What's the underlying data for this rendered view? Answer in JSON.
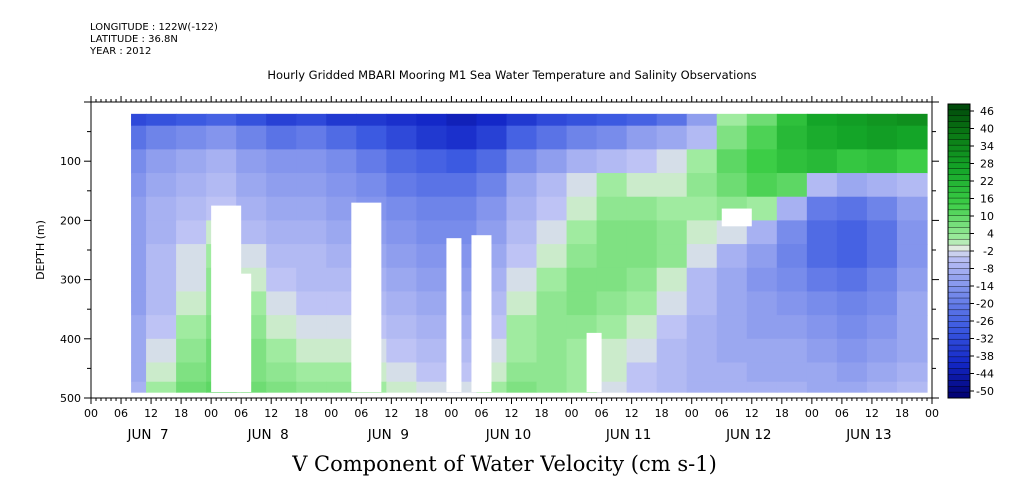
{
  "header": {
    "longitude": "LONGITUDE : 122W(-122)",
    "latitude": "LATITUDE : 36.8N",
    "year": "YEAR : 2012"
  },
  "chart_data": {
    "type": "heatmap",
    "title": "Hourly Gridded MBARI Mooring M1 Sea Water Temperature and Salinity Observations",
    "subtitle": "V Component of Water Velocity (cm s-1)",
    "xlabel": "",
    "ylabel": "DEPTH (m)",
    "x_range_hours": [
      0,
      168
    ],
    "x_tick_hour_labels": [
      "00",
      "06",
      "12",
      "18",
      "00",
      "06",
      "12",
      "18",
      "00",
      "06",
      "12",
      "18",
      "00",
      "06",
      "12",
      "18",
      "00",
      "06",
      "12",
      "18",
      "00",
      "06",
      "12",
      "18",
      "00",
      "06",
      "12",
      "18",
      "00"
    ],
    "x_day_labels": [
      "JUN  7",
      "JUN  8",
      "JUN  9",
      "JUN 10",
      "JUN 11",
      "JUN 12",
      "JUN 13"
    ],
    "y_ticks": [
      100,
      200,
      300,
      400,
      500
    ],
    "ylim": [
      0,
      500
    ],
    "y_reversed": true,
    "colorbar": {
      "labels": [
        "46",
        "40",
        "34",
        "28",
        "22",
        "16",
        "10",
        "4",
        "-2",
        "-8",
        "-14",
        "-20",
        "-26",
        "-32",
        "-38",
        "-44",
        "-50"
      ],
      "min": -50,
      "max": 50
    },
    "depth_levels": [
      20,
      60,
      100,
      140,
      180,
      220,
      260,
      300,
      340,
      380,
      420,
      460,
      485
    ],
    "time_hours": [
      8,
      14,
      20,
      26,
      32,
      38,
      44,
      50,
      56,
      62,
      68,
      74,
      80,
      86,
      92,
      98,
      104,
      110,
      116,
      122,
      128,
      134,
      140,
      146,
      152,
      158,
      164
    ],
    "v_values": [
      [
        -30,
        -28,
        -26,
        -24,
        -28,
        -32,
        -30,
        -34,
        -34,
        -36,
        -38,
        -40,
        -38,
        -34,
        -30,
        -28,
        -26,
        -24,
        -20,
        -10,
        4,
        10,
        20,
        28,
        30,
        32,
        34
      ],
      [
        -20,
        -16,
        -14,
        -12,
        -16,
        -20,
        -18,
        -22,
        -26,
        -30,
        -34,
        -36,
        -32,
        -24,
        -20,
        -16,
        -14,
        -10,
        -8,
        -4,
        8,
        14,
        22,
        26,
        28,
        30,
        28
      ],
      [
        -14,
        -10,
        -8,
        -6,
        -10,
        -12,
        -12,
        -14,
        -18,
        -22,
        -24,
        -26,
        -22,
        -14,
        -10,
        -6,
        -4,
        -2,
        0,
        4,
        12,
        16,
        20,
        22,
        18,
        20,
        16
      ],
      [
        -12,
        -8,
        -6,
        -4,
        -8,
        -10,
        -10,
        -12,
        -14,
        -18,
        -20,
        -20,
        -16,
        -8,
        -4,
        0,
        4,
        2,
        2,
        6,
        10,
        14,
        12,
        -4,
        -8,
        -6,
        -4
      ],
      [
        -10,
        -6,
        -4,
        -2,
        -6,
        -8,
        -8,
        -10,
        -12,
        -14,
        -16,
        -16,
        -12,
        -6,
        -2,
        2,
        6,
        6,
        4,
        4,
        6,
        4,
        -6,
        -18,
        -20,
        -16,
        -10
      ],
      [
        -10,
        -6,
        -2,
        2,
        -4,
        -6,
        -6,
        -8,
        -10,
        -12,
        -14,
        -14,
        -10,
        -4,
        0,
        4,
        8,
        8,
        6,
        2,
        0,
        -6,
        -14,
        -22,
        -24,
        -20,
        -12
      ],
      [
        -10,
        -4,
        0,
        4,
        0,
        -4,
        -4,
        -6,
        -8,
        -10,
        -12,
        -12,
        -8,
        -2,
        2,
        6,
        8,
        8,
        6,
        0,
        -6,
        -10,
        -16,
        -22,
        -24,
        -20,
        -12
      ],
      [
        -10,
        -4,
        0,
        6,
        2,
        -2,
        -4,
        -4,
        -6,
        -8,
        -10,
        -10,
        -6,
        0,
        4,
        8,
        8,
        6,
        2,
        -4,
        -8,
        -12,
        -14,
        -18,
        -20,
        -16,
        -10
      ],
      [
        -10,
        -4,
        2,
        6,
        4,
        0,
        -2,
        -2,
        -4,
        -6,
        -8,
        -8,
        -4,
        2,
        6,
        8,
        6,
        4,
        0,
        -4,
        -8,
        -10,
        -12,
        -14,
        -16,
        -14,
        -8
      ],
      [
        -8,
        -2,
        4,
        8,
        6,
        2,
        0,
        0,
        -2,
        -4,
        -6,
        -6,
        -2,
        4,
        6,
        6,
        4,
        2,
        -2,
        -6,
        -8,
        -10,
        -10,
        -12,
        -14,
        -12,
        -8
      ],
      [
        -8,
        0,
        6,
        10,
        8,
        4,
        2,
        2,
        0,
        -2,
        -4,
        -4,
        0,
        4,
        6,
        4,
        2,
        0,
        -4,
        -6,
        -8,
        -8,
        -8,
        -10,
        -12,
        -10,
        -8
      ],
      [
        -8,
        2,
        8,
        10,
        8,
        6,
        4,
        4,
        2,
        0,
        -2,
        -2,
        2,
        6,
        6,
        4,
        2,
        -2,
        -4,
        -6,
        -6,
        -8,
        -8,
        -8,
        -10,
        -8,
        -6
      ],
      [
        -6,
        4,
        10,
        12,
        10,
        8,
        6,
        6,
        4,
        2,
        0,
        0,
        4,
        8,
        6,
        4,
        0,
        -2,
        -4,
        -6,
        -6,
        -6,
        -6,
        -8,
        -8,
        -6,
        -4
      ]
    ],
    "data_extent_hours": [
      8,
      167
    ],
    "data_depth_extent": [
      20,
      490
    ],
    "missing_regions": [
      {
        "hours": [
          0,
          8
        ],
        "depth": [
          340,
          490
        ]
      },
      {
        "hours": [
          24,
          30
        ],
        "depth": [
          175,
          490
        ]
      },
      {
        "hours": [
          29,
          32
        ],
        "depth": [
          290,
          490
        ]
      },
      {
        "hours": [
          52,
          58
        ],
        "depth": [
          170,
          490
        ]
      },
      {
        "hours": [
          71,
          74
        ],
        "depth": [
          230,
          490
        ]
      },
      {
        "hours": [
          76,
          80
        ],
        "depth": [
          225,
          490
        ]
      },
      {
        "hours": [
          77,
          79
        ],
        "depth": [
          340,
          490
        ]
      },
      {
        "hours": [
          99,
          102
        ],
        "depth": [
          390,
          490
        ]
      },
      {
        "hours": [
          126,
          132
        ],
        "depth": [
          180,
          210
        ]
      }
    ]
  }
}
